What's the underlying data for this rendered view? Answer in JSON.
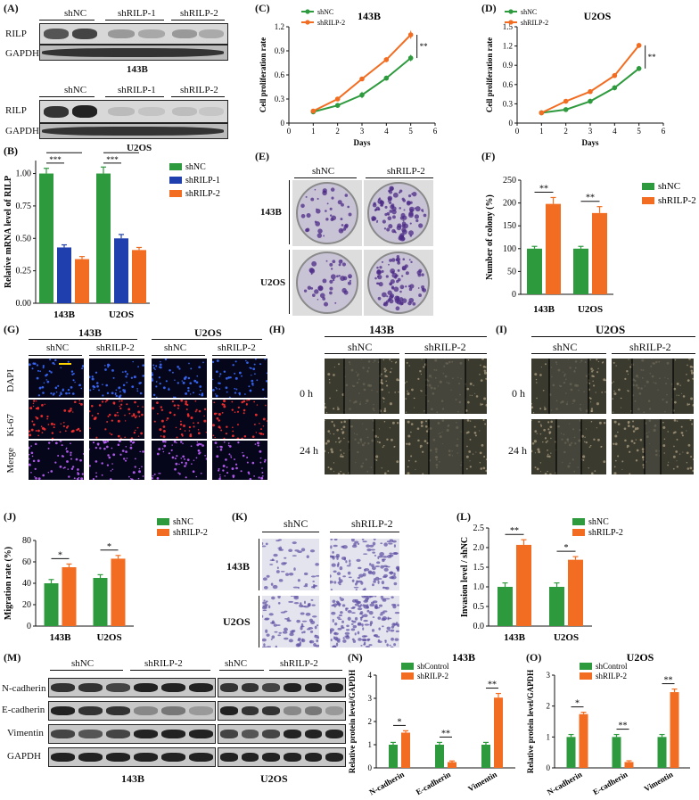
{
  "panels": {
    "A": {
      "label": "(A)",
      "top_columns": [
        "shNC",
        "shRILP-1",
        "shRILP-2"
      ],
      "rows": [
        "RILP",
        "GAPDH"
      ],
      "cell_top": "143B",
      "bottom_columns": [
        "shNC",
        "shRILP-1",
        "shRILP-2"
      ],
      "cell_bottom": "U2OS"
    },
    "B": {
      "label": "(B)"
    },
    "C": {
      "label": "(C)"
    },
    "D": {
      "label": "(D)"
    },
    "E": {
      "label": "(E)",
      "columns": [
        "shNC",
        "shRILP-2"
      ],
      "rows": [
        "143B",
        "U2OS"
      ]
    },
    "F": {
      "label": "(F)"
    },
    "G": {
      "label": "(G)",
      "groups": [
        "143B",
        "U2OS"
      ],
      "columns": [
        "shNC",
        "shRILP-2",
        "shNC",
        "shRILP-2"
      ],
      "rows": [
        "DAPI",
        "Ki-67",
        "Merge"
      ]
    },
    "H": {
      "label": "(H)",
      "title": "143B",
      "columns": [
        "shNC",
        "shRILP-2"
      ],
      "rows": [
        "0 h",
        "24 h"
      ]
    },
    "I": {
      "label": "(I)",
      "title": "U2OS",
      "columns": [
        "shNC",
        "shRILP-2"
      ],
      "rows": [
        "0 h",
        "24 h"
      ]
    },
    "J": {
      "label": "(J)"
    },
    "K": {
      "label": "(K)",
      "columns": [
        "shNC",
        "shRILP-2"
      ],
      "rows": [
        "143B",
        "U2OS"
      ]
    },
    "L": {
      "label": "(L)"
    },
    "M": {
      "label": "(M)",
      "rows": [
        "N-cadherin",
        "E-cadherin",
        "Vimentin",
        "GAPDH"
      ],
      "groups": [
        "shNC",
        "shRILP-2",
        "shNC",
        "shRILP-2"
      ],
      "cells": [
        "143B",
        "U2OS"
      ]
    },
    "N": {
      "label": "(N)"
    },
    "O": {
      "label": "(O)"
    }
  },
  "chart_data": [
    {
      "id": "B",
      "type": "bar",
      "categories": [
        "143B",
        "U2OS"
      ],
      "series": [
        {
          "name": "shNC",
          "values": [
            1.0,
            1.0
          ],
          "err": [
            0.04,
            0.05
          ]
        },
        {
          "name": "shRILP-1",
          "values": [
            0.43,
            0.5
          ],
          "err": [
            0.02,
            0.03
          ]
        },
        {
          "name": "shRILP-2",
          "values": [
            0.34,
            0.41
          ],
          "err": [
            0.02,
            0.02
          ]
        }
      ],
      "colors": [
        "#2e9a3e",
        "#1f3fae",
        "#f26d21"
      ],
      "ylabel": "Relative mRNA level of RILP",
      "ylim": [
        0,
        1.1
      ],
      "yticks": [
        "0.00",
        "0.25",
        "0.50",
        "0.75",
        "1.00"
      ],
      "significance": [
        "***",
        "***",
        "***",
        "***"
      ],
      "legend": "right"
    },
    {
      "id": "C",
      "type": "line",
      "title": "143B",
      "x": [
        1,
        2,
        3,
        4,
        5
      ],
      "series": [
        {
          "name": "shNC",
          "values": [
            0.14,
            0.22,
            0.35,
            0.56,
            0.81
          ],
          "err": [
            0.02,
            0.02,
            0.04,
            0.03,
            0.04
          ]
        },
        {
          "name": "shRILP-2",
          "values": [
            0.15,
            0.3,
            0.55,
            0.79,
            1.1
          ],
          "err": [
            0.02,
            0.02,
            0.02,
            0.03,
            0.05
          ]
        }
      ],
      "colors": [
        "#2e9a3e",
        "#f26d21"
      ],
      "xlabel": "Days",
      "ylabel": "Cell proliferation rate",
      "xlim": [
        0,
        6
      ],
      "ylim": [
        0,
        1.2
      ],
      "xticks": [
        "0",
        "1",
        "2",
        "3",
        "4",
        "5",
        "6"
      ],
      "yticks": [
        "0",
        "0.3",
        "0.6",
        "0.9",
        "1.2"
      ],
      "significance": [
        "**"
      ],
      "legend": "top-left"
    },
    {
      "id": "D",
      "type": "line",
      "title": "U2OS",
      "x": [
        1,
        2,
        3,
        4,
        5
      ],
      "series": [
        {
          "name": "shNC",
          "values": [
            0.16,
            0.21,
            0.34,
            0.55,
            0.85
          ],
          "err": [
            0.02,
            0.02,
            0.04,
            0.04,
            0.04
          ]
        },
        {
          "name": "shRILP-2",
          "values": [
            0.16,
            0.34,
            0.49,
            0.74,
            1.21
          ],
          "err": [
            0.02,
            0.02,
            0.02,
            0.03,
            0.04
          ]
        }
      ],
      "colors": [
        "#2e9a3e",
        "#f26d21"
      ],
      "xlabel": "Days",
      "ylabel": "Cell proliferation rate",
      "xlim": [
        0,
        6
      ],
      "ylim": [
        0,
        1.5
      ],
      "xticks": [
        "0",
        "1",
        "2",
        "3",
        "4",
        "5",
        "6"
      ],
      "yticks": [
        "0",
        "0.3",
        "0.6",
        "0.9",
        "1.2",
        "1.5"
      ],
      "significance": [
        "**"
      ],
      "legend": "top-left"
    },
    {
      "id": "F",
      "type": "bar",
      "categories": [
        "143B",
        "U2OS"
      ],
      "series": [
        {
          "name": "shNC",
          "values": [
            100,
            100
          ],
          "err": [
            5,
            5
          ]
        },
        {
          "name": "shRILP-2",
          "values": [
            198,
            178
          ],
          "err": [
            14,
            14
          ]
        }
      ],
      "colors": [
        "#2e9a3e",
        "#f26d21"
      ],
      "ylabel": "Number of colony (%)",
      "ylim": [
        0,
        250
      ],
      "yticks": [
        "0",
        "50",
        "100",
        "150",
        "200",
        "250"
      ],
      "significance": [
        "**",
        "**"
      ],
      "legend": "right"
    },
    {
      "id": "J",
      "type": "bar",
      "categories": [
        "143B",
        "U2OS"
      ],
      "series": [
        {
          "name": "shNC",
          "values": [
            40,
            45
          ],
          "err": [
            3.5,
            3
          ]
        },
        {
          "name": "shRILP-2",
          "values": [
            55,
            63
          ],
          "err": [
            3,
            3
          ]
        }
      ],
      "colors": [
        "#2e9a3e",
        "#f26d21"
      ],
      "ylabel": "Migration rate (%)",
      "ylim": [
        0,
        80
      ],
      "yticks": [
        "0",
        "20",
        "40",
        "60",
        "80"
      ],
      "significance": [
        "*",
        "*"
      ],
      "legend": "top-right"
    },
    {
      "id": "L",
      "type": "bar",
      "categories": [
        "143B",
        "U2OS"
      ],
      "series": [
        {
          "name": "shNC",
          "values": [
            1.0,
            1.0
          ],
          "err": [
            0.1,
            0.1
          ]
        },
        {
          "name": "shRILP-2",
          "values": [
            2.07,
            1.69
          ],
          "err": [
            0.13,
            0.08
          ]
        }
      ],
      "colors": [
        "#2e9a3e",
        "#f26d21"
      ],
      "ylabel": "Invasion level / shNC",
      "ylim": [
        0,
        2.5
      ],
      "yticks": [
        "0.0",
        "0.5",
        "1.0",
        "1.5",
        "2.0",
        "2.5"
      ],
      "significance": [
        "**",
        "*"
      ],
      "legend": "top-right"
    },
    {
      "id": "N",
      "type": "bar",
      "title": "143B",
      "categories": [
        "N-cadherin",
        "E-cadherin",
        "Vimentin"
      ],
      "series": [
        {
          "name": "shControl",
          "values": [
            1.0,
            1.0,
            1.0
          ],
          "err": [
            0.1,
            0.1,
            0.1
          ]
        },
        {
          "name": "shRILP-2",
          "values": [
            1.52,
            0.25,
            3.03
          ],
          "err": [
            0.08,
            0.05,
            0.18
          ]
        }
      ],
      "colors": [
        "#2e9a3e",
        "#f26d21"
      ],
      "ylabel": "Relative protein level/GAPDH",
      "ylim": [
        0,
        4
      ],
      "yticks": [
        "0",
        "1",
        "2",
        "3",
        "4"
      ],
      "significance": [
        "*",
        "**",
        "**"
      ],
      "legend": "top-left"
    },
    {
      "id": "O",
      "type": "bar",
      "title": "U2OS",
      "categories": [
        "N-cadherin",
        "E-cadherin",
        "Vimentin"
      ],
      "series": [
        {
          "name": "shControl",
          "values": [
            1.0,
            1.0,
            1.0
          ],
          "err": [
            0.08,
            0.08,
            0.08
          ]
        },
        {
          "name": "shRILP-2",
          "values": [
            1.74,
            0.19,
            2.45
          ],
          "err": [
            0.06,
            0.04,
            0.1
          ]
        }
      ],
      "colors": [
        "#2e9a3e",
        "#f26d21"
      ],
      "ylabel": "Relative protein level/GAPDH",
      "ylim": [
        0,
        3
      ],
      "yticks": [
        "0",
        "1",
        "2",
        "3"
      ],
      "significance": [
        "*",
        "**",
        "**"
      ],
      "legend": "top-left"
    }
  ]
}
